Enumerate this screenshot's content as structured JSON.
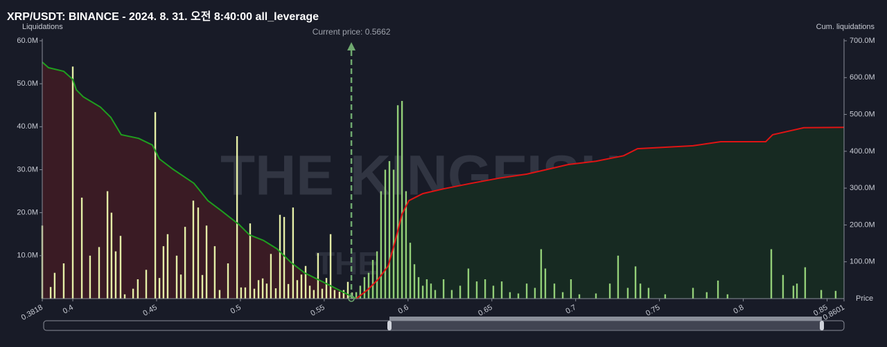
{
  "chart_data": {
    "type": "bar",
    "title": "XRP/USDT: BINANCE - 2024. 8. 31. 오전 8:40:00 all_leverage",
    "y_label": "Liquidations",
    "y2_label": "Cum. liquidations",
    "x_label": "Price",
    "annotation": "Current price: 0.5662",
    "current_price": 0.5662,
    "watermark": "THE KINGFISHER",
    "watermark_suffix": "IO",
    "xlim": [
      0.3818,
      0.8601
    ],
    "xticks": [
      0.3818,
      0.4,
      0.45,
      0.5,
      0.55,
      0.6,
      0.65,
      0.7,
      0.75,
      0.8,
      0.85,
      0.8601
    ],
    "ylim": [
      0,
      60000000
    ],
    "yticks": [
      {
        "value": 10000000,
        "label": "10.0M"
      },
      {
        "value": 20000000,
        "label": "20.0M"
      },
      {
        "value": 30000000,
        "label": "30.0M"
      },
      {
        "value": 40000000,
        "label": "40.0M"
      },
      {
        "value": 50000000,
        "label": "50.0M"
      },
      {
        "value": 60000000,
        "label": "60.0M"
      }
    ],
    "y2lim": [
      0,
      700000000
    ],
    "y2ticks": [
      {
        "value": 100000000,
        "label": "100.0M"
      },
      {
        "value": 200000000,
        "label": "200.0M"
      },
      {
        "value": 300000000,
        "label": "300.0M"
      },
      {
        "value": 400000000,
        "label": "400.0M"
      },
      {
        "value": 500000000,
        "label": "500.0M"
      },
      {
        "value": 600000000,
        "label": "600.0M"
      },
      {
        "value": 700000000,
        "label": "700.0M"
      }
    ],
    "series": [
      {
        "type": "bar",
        "color": "#e4eea6",
        "x": [
          0.3818,
          0.3868,
          0.3892,
          0.3946,
          0.4,
          0.4054,
          0.4103,
          0.4157,
          0.4207,
          0.4231,
          0.4256,
          0.4285,
          0.431,
          0.436,
          0.4388,
          0.4438,
          0.4492,
          0.4517,
          0.4541,
          0.4566,
          0.462,
          0.4645,
          0.467,
          0.4719,
          0.4748,
          0.4773,
          0.4798,
          0.4847,
          0.4876,
          0.4926,
          0.498,
          0.5004,
          0.5029,
          0.5058,
          0.5083,
          0.5108,
          0.5133,
          0.5157,
          0.5182,
          0.5211,
          0.5236,
          0.5261,
          0.5286,
          0.5314,
          0.5339,
          0.5364,
          0.5389,
          0.5414,
          0.5438,
          0.5463,
          0.5488,
          0.5513,
          0.5538,
          0.5562,
          0.5591,
          0.5616,
          0.5641,
          0.5666
        ],
        "values": [
          17000000,
          2700000,
          6000000,
          8200000,
          54000000,
          23500000,
          10000000,
          12000000,
          25000000,
          20000000,
          11000000,
          14600000,
          1000000,
          2300000,
          4500000,
          6700000,
          43400000,
          4800000,
          12200000,
          15000000,
          10000000,
          5600000,
          16700000,
          22800000,
          21200000,
          5500000,
          17000000,
          12200000,
          2000000,
          8200000,
          37800000,
          2600000,
          2600000,
          17500000,
          2300000,
          4300000,
          4700000,
          3500000,
          10400000,
          2400000,
          19500000,
          19000000,
          3400000,
          21200000,
          4300000,
          5600000,
          7600000,
          3000000,
          2000000,
          10600000,
          2300000,
          4800000,
          15000000,
          2000000,
          1600000,
          2000000,
          3900000,
          1400000
        ]
      },
      {
        "type": "bar",
        "color": "#93cf78",
        "x": [
          0.5691,
          0.5715,
          0.574,
          0.5765,
          0.579,
          0.5815,
          0.5839,
          0.5864,
          0.5889,
          0.5914,
          0.5939,
          0.5964,
          0.5988,
          0.6013,
          0.6038,
          0.6063,
          0.6088,
          0.6112,
          0.6137,
          0.6162,
          0.6212,
          0.6261,
          0.6311,
          0.636,
          0.641,
          0.646,
          0.6509,
          0.6559,
          0.6608,
          0.6658,
          0.6708,
          0.6757,
          0.6794,
          0.6819,
          0.6873,
          0.6923,
          0.6972,
          0.7022,
          0.7121,
          0.7204,
          0.7253,
          0.7311,
          0.7357,
          0.7386,
          0.7435,
          0.7534,
          0.77,
          0.7782,
          0.7849,
          0.7906,
          0.8167,
          0.8237,
          0.8299,
          0.832,
          0.8369,
          0.8465,
          0.8551
        ],
        "values": [
          1500000,
          3000000,
          5000000,
          6000000,
          9000000,
          11000000,
          25000000,
          30000000,
          32000000,
          30000000,
          45000000,
          46000000,
          25000000,
          13000000,
          8000000,
          5000000,
          3000000,
          4500000,
          3500000,
          2000000,
          4500000,
          2000000,
          3000000,
          7000000,
          4000000,
          4500000,
          3000000,
          4000000,
          1500000,
          1200000,
          3500000,
          2500000,
          11500000,
          7000000,
          3500000,
          1500000,
          4500000,
          1000000,
          1200000,
          3500000,
          10000000,
          2500000,
          7500000,
          3500000,
          2500000,
          1000000,
          2500000,
          1500000,
          4200000,
          1000000,
          11500000,
          5500000,
          3000000,
          3500000,
          7300000,
          2000000,
          1800000
        ]
      },
      {
        "type": "line",
        "axis": "y2",
        "color": "#1f9e1f",
        "fill": "#3a1b24",
        "x": [
          0.3818,
          0.3855,
          0.3946,
          0.4,
          0.4021,
          0.4062,
          0.4165,
          0.4227,
          0.4289,
          0.4393,
          0.4475,
          0.4517,
          0.4599,
          0.4723,
          0.4806,
          0.4888,
          0.4992,
          0.5054,
          0.5137,
          0.5219,
          0.5302,
          0.5385,
          0.5467,
          0.555,
          0.5633,
          0.5691
        ],
        "values": [
          642000000,
          627000000,
          617000000,
          595000000,
          567000000,
          548000000,
          520000000,
          492000000,
          445000000,
          435000000,
          417000000,
          379000000,
          351000000,
          313000000,
          266000000,
          238000000,
          201000000,
          173000000,
          158000000,
          135000000,
          98000000,
          69000000,
          51000000,
          32000000,
          13000000,
          0
        ]
      },
      {
        "type": "line",
        "axis": "y2",
        "color": "#e01414",
        "fill": "#172a22",
        "x": [
          0.5691,
          0.5757,
          0.5819,
          0.5881,
          0.5922,
          0.5964,
          0.6005,
          0.6088,
          0.6212,
          0.6377,
          0.6542,
          0.6708,
          0.6832,
          0.6956,
          0.7121,
          0.7286,
          0.7369,
          0.7534,
          0.77,
          0.7865,
          0.8134,
          0.8175,
          0.8361,
          0.8601
        ],
        "values": [
          0,
          23000000,
          51000000,
          88000000,
          154000000,
          229000000,
          266000000,
          285000000,
          298000000,
          313000000,
          327000000,
          338000000,
          351000000,
          364000000,
          373000000,
          388000000,
          407000000,
          411000000,
          415000000,
          426000000,
          426000000,
          445000000,
          464000000,
          465000000
        ]
      }
    ]
  }
}
